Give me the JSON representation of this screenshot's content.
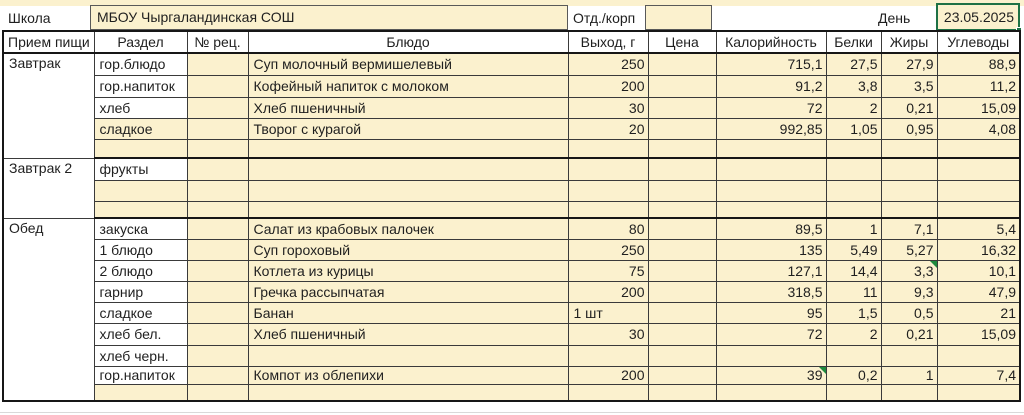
{
  "top_bar": {
    "school_label": "Школа",
    "school_name": "МБОУ Чыргаландинская СОШ",
    "dept_label": "Отд./корп",
    "dept_value": "",
    "day_label": "День",
    "day_value": "23.05.2025"
  },
  "table": {
    "headers": [
      "Прием пищи",
      "Раздел",
      "№ рец.",
      "Блюдо",
      "Выход, г",
      "Цена",
      "Калорийность",
      "Белки",
      "Жиры",
      "Углеводы"
    ],
    "sections": [
      {
        "meal": "Завтрак",
        "rows": [
          {
            "razdel": "гор.блюдо",
            "razdel_cream": false,
            "recipe": "",
            "dish": "Суп молочный вермишелевый",
            "output": "250",
            "price": "",
            "calories": "715,1",
            "protein": "27,5",
            "fat": "27,9",
            "carbs": "88,9"
          },
          {
            "razdel": "гор.напиток",
            "razdel_cream": false,
            "recipe": "",
            "dish": "Кофейный напиток с молоком",
            "output": "200",
            "price": "",
            "calories": "91,2",
            "protein": "3,8",
            "fat": "3,5",
            "carbs": "11,2"
          },
          {
            "razdel": "хлеб",
            "razdel_cream": false,
            "recipe": "",
            "dish": "Хлеб пшеничный",
            "output": "30",
            "price": "",
            "calories": "72",
            "protein": "2",
            "fat": "0,21",
            "carbs": "15,09"
          },
          {
            "razdel": "сладкое",
            "razdel_cream": true,
            "recipe": "",
            "dish": "Творог с курагой",
            "output": "20",
            "price": "",
            "calories": "992,85",
            "protein": "1,05",
            "fat": "0,95",
            "carbs": "4,08"
          },
          {
            "razdel": "",
            "razdel_cream": true,
            "recipe": "",
            "dish": "",
            "output": "",
            "price": "",
            "calories": "",
            "protein": "",
            "fat": "",
            "carbs": ""
          }
        ]
      },
      {
        "meal": "Завтрак 2",
        "rows": [
          {
            "razdel": "фрукты",
            "razdel_cream": false,
            "recipe": "",
            "dish": "",
            "output": "",
            "price": "",
            "calories": "",
            "protein": "",
            "fat": "",
            "carbs": ""
          },
          {
            "razdel": "",
            "razdel_cream": true,
            "recipe": "",
            "dish": "",
            "output": "",
            "price": "",
            "calories": "",
            "protein": "",
            "fat": "",
            "carbs": ""
          },
          {
            "razdel": "",
            "razdel_cream": true,
            "recipe": "",
            "dish": "",
            "output": "",
            "price": "",
            "calories": "",
            "protein": "",
            "fat": "",
            "carbs": ""
          }
        ]
      },
      {
        "meal": "Обед",
        "rows": [
          {
            "razdel": "закуска",
            "razdel_cream": false,
            "recipe": "",
            "dish": "Салат из крабовых палочек",
            "output": "80",
            "price": "",
            "calories": "89,5",
            "protein": "1",
            "fat": "7,1",
            "carbs": "5,4"
          },
          {
            "razdel": "1 блюдо",
            "razdel_cream": false,
            "recipe": "",
            "dish": "Суп гороховый",
            "output": "250",
            "price": "",
            "calories": "135",
            "protein": "5,49",
            "fat": "5,27",
            "carbs": "16,32"
          },
          {
            "razdel": "2 блюдо",
            "razdel_cream": false,
            "recipe": "",
            "dish": "Котлета из курицы",
            "output": "75",
            "price": "",
            "calories": "127,1",
            "protein": "14,4",
            "fat": "3,3",
            "fat_flag": true,
            "carbs": "10,1"
          },
          {
            "razdel": "гарнир",
            "razdel_cream": false,
            "recipe": "",
            "dish": "Гречка рассыпчатая",
            "output": "200",
            "price": "",
            "calories": "318,5",
            "protein": "11",
            "fat": "9,3",
            "carbs": "47,9"
          },
          {
            "razdel": "сладкое",
            "razdel_cream": false,
            "recipe": "",
            "dish": "Банан",
            "output": "1 шт",
            "price": "",
            "calories": "95",
            "protein": "1,5",
            "fat": "0,5",
            "carbs": "21"
          },
          {
            "razdel": "хлеб бел.",
            "razdel_cream": false,
            "recipe": "",
            "dish": "Хлеб пшеничный",
            "output": "30",
            "price": "",
            "calories": "72",
            "protein": "2",
            "fat": "0,21",
            "carbs": "15,09"
          },
          {
            "razdel": "хлеб черн.",
            "razdel_cream": false,
            "recipe": "",
            "dish": "",
            "output": "",
            "price": "",
            "calories": "",
            "protein": "",
            "fat": "",
            "carbs": ""
          },
          {
            "razdel": "гор.напиток",
            "razdel_cream": false,
            "recipe": "",
            "dish": "Компот из облепихи",
            "output": "200",
            "price": "",
            "calories": "39",
            "calories_flag": true,
            "protein": "0,2",
            "fat": "1",
            "carbs": "7,4"
          },
          {
            "razdel": "",
            "razdel_cream": true,
            "recipe": "",
            "dish": "",
            "output": "",
            "price": "",
            "calories": "",
            "protein": "",
            "fat": "",
            "carbs": ""
          }
        ]
      }
    ]
  },
  "colors": {
    "cell_fill": "#fbf1ce",
    "selection_green": "#1e7145",
    "flag_green": "#1e8a3e"
  }
}
